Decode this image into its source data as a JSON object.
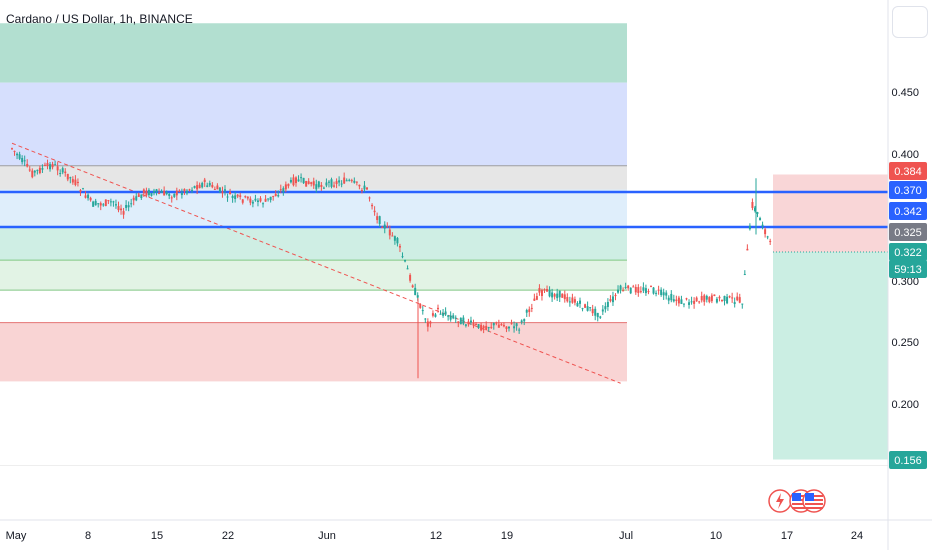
{
  "header": {
    "title": "Cardano / US Dollar, 1h, BINANCE"
  },
  "icons": [
    "lightning-icon",
    "us-flag-icon",
    "us-flag-icon"
  ],
  "colors": {
    "up": "#26a69a",
    "down": "#ef5350",
    "hline": "#2962ff",
    "trendline": "#ef5350",
    "zone_top_green": "#b2dfd0",
    "zone_blue": "#d6dffd",
    "zone_gray": "#e6e6e6",
    "zone_light_blue": "#dfeefb",
    "zone_teal": "#cfeee4",
    "zone_light_green": "#e2f3e5",
    "zone_red": "#f9d4d4",
    "price_badge_red": "#ef5350",
    "price_badge_blue": "#2962ff",
    "price_badge_gray": "#787b86",
    "price_badge_green": "#26a69a"
  },
  "chart_data": {
    "type": "candlestick",
    "title": "Cardano / US Dollar, 1h, BINANCE",
    "y_axis": {
      "ticks": [
        "0.450",
        "0.400",
        "0.300",
        "0.250",
        "0.200"
      ],
      "position": "right"
    },
    "x_axis": {
      "ticks": [
        "May",
        "8",
        "15",
        "22",
        "Jun",
        "12",
        "19",
        "Jul",
        "10",
        "17",
        "24"
      ]
    },
    "price_labels": [
      {
        "text": "0.384",
        "color": "red"
      },
      {
        "text": "0.370",
        "color": "blue"
      },
      {
        "text": "0.342",
        "color": "blue"
      },
      {
        "text": "0.325",
        "color": "gray"
      },
      {
        "text": "0.322",
        "color": "green"
      },
      {
        "text": "59:13",
        "color": "green"
      },
      {
        "text": "0.156",
        "color": "green"
      }
    ],
    "horizontal_lines": [
      {
        "price": 0.37,
        "color": "blue"
      },
      {
        "price": 0.342,
        "color": "blue"
      }
    ],
    "zones": [
      {
        "name": "top-green",
        "from": 0.4575,
        "to": 0.505
      },
      {
        "name": "blue",
        "from": 0.391,
        "to": 0.4575
      },
      {
        "name": "gray",
        "from": 0.372,
        "to": 0.391
      },
      {
        "name": "light-blue",
        "from": 0.342,
        "to": 0.372
      },
      {
        "name": "teal",
        "from": 0.3155,
        "to": 0.342
      },
      {
        "name": "light-green",
        "from": 0.2915,
        "to": 0.3155
      },
      {
        "name": "red",
        "from": 0.2185,
        "to": 0.2655
      }
    ],
    "position_tool": {
      "entry": 0.322,
      "stop": 0.384,
      "target": 0.156
    },
    "trendline": {
      "start_date": "May 1",
      "start_price": 0.409,
      "end_date": "Jun 30",
      "end_price": 0.217
    },
    "series": [
      {
        "date": "May 1",
        "close": 0.405
      },
      {
        "date": "May 3",
        "close": 0.385
      },
      {
        "date": "May 5",
        "close": 0.392
      },
      {
        "date": "May 7",
        "close": 0.38
      },
      {
        "date": "May 9",
        "close": 0.36
      },
      {
        "date": "May 11",
        "close": 0.362
      },
      {
        "date": "May 12",
        "close": 0.355
      },
      {
        "date": "May 14",
        "close": 0.37
      },
      {
        "date": "May 17",
        "close": 0.368
      },
      {
        "date": "May 20",
        "close": 0.377
      },
      {
        "date": "May 23",
        "close": 0.365
      },
      {
        "date": "May 26",
        "close": 0.362
      },
      {
        "date": "May 29",
        "close": 0.38
      },
      {
        "date": "May 31",
        "close": 0.375
      },
      {
        "date": "Jun 3",
        "close": 0.379
      },
      {
        "date": "Jun 5",
        "close": 0.372
      },
      {
        "date": "Jun 6",
        "close": 0.35
      },
      {
        "date": "Jun 8",
        "close": 0.33
      },
      {
        "date": "Jun 10",
        "close": 0.285
      },
      {
        "date": "Jun 11",
        "close": 0.265
      },
      {
        "date": "Jun 12",
        "close": 0.275
      },
      {
        "date": "Jun 14",
        "close": 0.268
      },
      {
        "date": "Jun 16",
        "close": 0.262
      },
      {
        "date": "Jun 18",
        "close": 0.264
      },
      {
        "date": "Jun 20",
        "close": 0.262
      },
      {
        "date": "Jun 22",
        "close": 0.29
      },
      {
        "date": "Jun 24",
        "close": 0.288
      },
      {
        "date": "Jun 26",
        "close": 0.28
      },
      {
        "date": "Jun 28",
        "close": 0.272
      },
      {
        "date": "Jun 30",
        "close": 0.292
      },
      {
        "date": "Jul 3",
        "close": 0.292
      },
      {
        "date": "Jul 6",
        "close": 0.282
      },
      {
        "date": "Jul 9",
        "close": 0.285
      },
      {
        "date": "Jul 12",
        "close": 0.283
      },
      {
        "date": "Jul 13",
        "close": 0.36
      },
      {
        "date": "Jul 14",
        "close": 0.345
      },
      {
        "date": "Jul 15",
        "close": 0.322
      }
    ]
  }
}
